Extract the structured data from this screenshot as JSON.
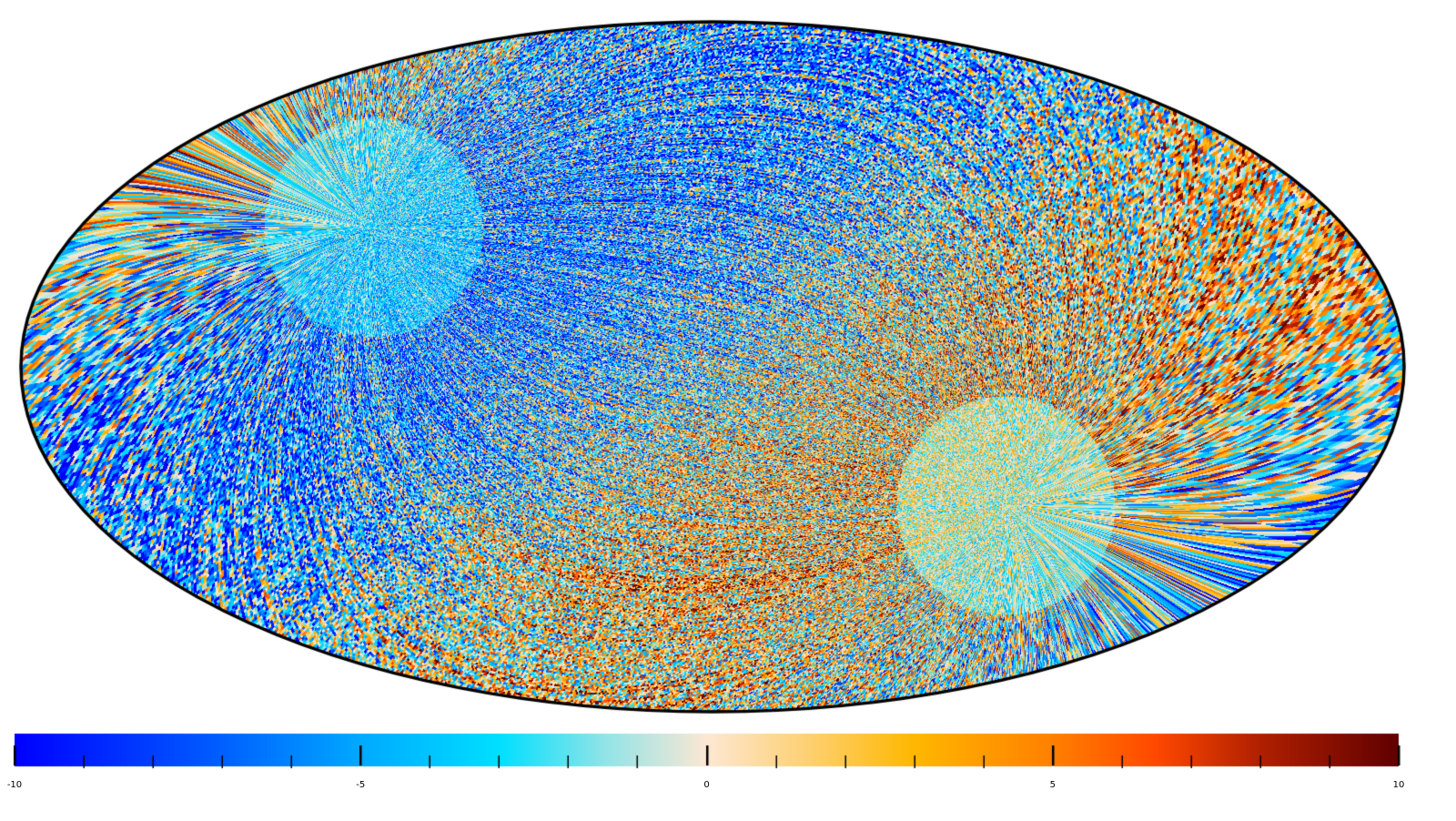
{
  "chart_data": {
    "type": "heatmap",
    "projection": "mollweide",
    "title": "",
    "colorbar": {
      "min": -10,
      "max": 10,
      "tick_labels": [
        "-10",
        "-5",
        "0",
        "5",
        "10"
      ],
      "major_ticks": [
        -10,
        -5,
        0,
        5,
        10
      ],
      "minor_tick_step": 1,
      "colormap_stops": [
        {
          "value": -10,
          "color": "#0000ff"
        },
        {
          "value": -7,
          "color": "#0060ff"
        },
        {
          "value": -5,
          "color": "#00aaff"
        },
        {
          "value": -3,
          "color": "#00e0ff"
        },
        {
          "value": -1.5,
          "color": "#90e4e8"
        },
        {
          "value": 0,
          "color": "#fde8d4"
        },
        {
          "value": 1.5,
          "color": "#fed070"
        },
        {
          "value": 3,
          "color": "#ffb800"
        },
        {
          "value": 5,
          "color": "#ff8000"
        },
        {
          "value": 6.5,
          "color": "#ff4800"
        },
        {
          "value": 8,
          "color": "#b02000"
        },
        {
          "value": 10,
          "color": "#600000"
        }
      ]
    },
    "outline_color": "#000000"
  }
}
